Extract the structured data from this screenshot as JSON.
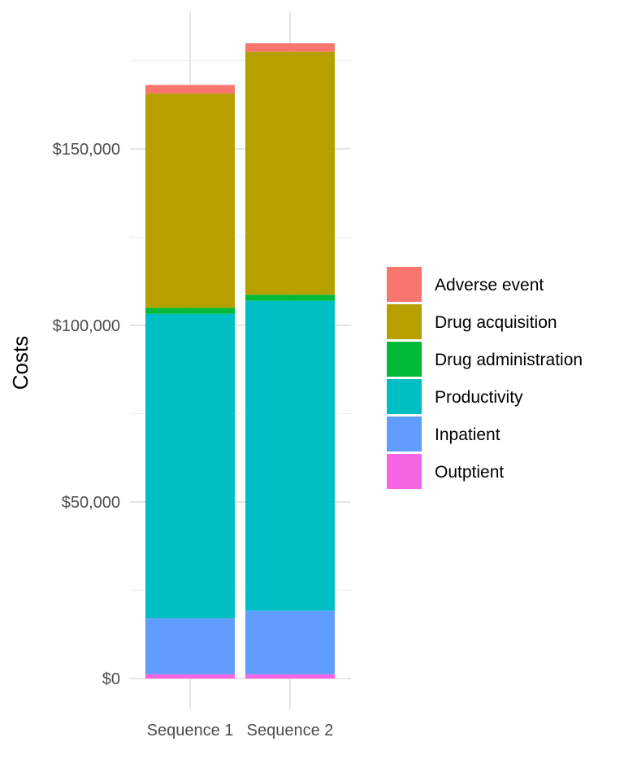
{
  "chart_data": {
    "type": "bar",
    "stacked": true,
    "categories": [
      "Sequence 1",
      "Sequence 2"
    ],
    "ylabel": "Costs",
    "xlabel": "",
    "ylim": [
      0,
      180000
    ],
    "y_ticks": [
      0,
      50000,
      100000,
      150000
    ],
    "y_tick_labels": [
      "$0",
      "$50,000",
      "$100,000",
      "$150,000"
    ],
    "grid": true,
    "legend_position": "right",
    "series": [
      {
        "name": "Outptient",
        "color": "#F564E3",
        "values": [
          1200,
          1200
        ]
      },
      {
        "name": "Inpatient",
        "color": "#619CFF",
        "values": [
          15800,
          18000
        ]
      },
      {
        "name": "Productivity",
        "color": "#00BFC4",
        "values": [
          86300,
          87800
        ]
      },
      {
        "name": "Drug administration",
        "color": "#00BA38",
        "values": [
          1700,
          1700
        ]
      },
      {
        "name": "Drug acquisition",
        "color": "#B79F00",
        "values": [
          60700,
          68800
        ]
      },
      {
        "name": "Adverse event",
        "color": "#F8766D",
        "values": [
          2400,
          2400
        ]
      }
    ],
    "legend_order": [
      "Adverse event",
      "Drug acquisition",
      "Drug administration",
      "Productivity",
      "Inpatient",
      "Outptient"
    ]
  }
}
